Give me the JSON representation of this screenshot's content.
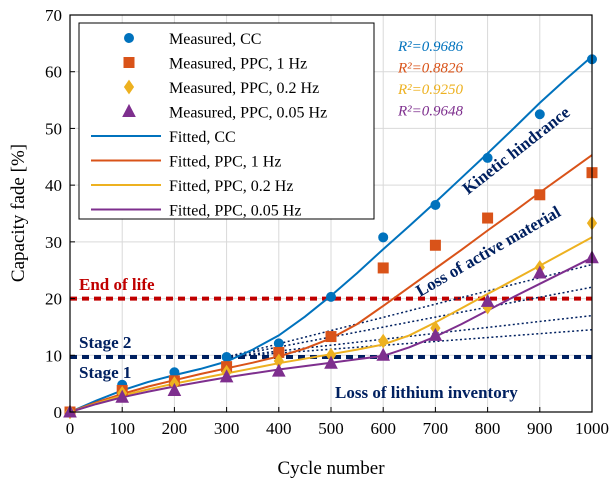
{
  "chart_data": {
    "type": "scatter",
    "xlabel": "Cycle number",
    "ylabel": "Capacity fade [%]",
    "xlim": [
      0,
      1000
    ],
    "ylim": [
      0,
      70
    ],
    "xticks": [
      0,
      100,
      200,
      300,
      400,
      500,
      600,
      700,
      800,
      900,
      1000
    ],
    "yticks": [
      0,
      10,
      20,
      30,
      40,
      50,
      60,
      70
    ],
    "grid": true,
    "legend_position": "top-left",
    "measured": [
      {
        "name": "Measured, CC",
        "color": "#0072BD",
        "marker": "circle",
        "x": [
          0,
          100,
          200,
          300,
          400,
          500,
          600,
          700,
          800,
          900,
          1000
        ],
        "y": [
          0,
          4.8,
          7,
          9.7,
          12.1,
          20.3,
          30.8,
          36.5,
          44.8,
          52.5,
          62.2
        ]
      },
      {
        "name": "Measured, PPC, 1 Hz",
        "color": "#D95319",
        "marker": "square",
        "x": [
          0,
          100,
          200,
          300,
          400,
          500,
          600,
          700,
          800,
          900,
          1000
        ],
        "y": [
          0,
          3.8,
          5.5,
          8,
          10.5,
          13.3,
          25.4,
          29.4,
          34.2,
          38.3,
          42.2
        ]
      },
      {
        "name": "Measured, PPC, 0.2 Hz",
        "color": "#EDB120",
        "marker": "diamond",
        "x": [
          0,
          100,
          200,
          300,
          400,
          500,
          600,
          700,
          800,
          900,
          1000
        ],
        "y": [
          0,
          3.3,
          5,
          7,
          9,
          10,
          12.5,
          14.8,
          18.5,
          25.5,
          33.3
        ]
      },
      {
        "name": "Measured, PPC, 0.05 Hz",
        "color": "#7E2F8E",
        "marker": "triangle",
        "x": [
          0,
          100,
          200,
          300,
          400,
          500,
          600,
          700,
          800,
          900,
          1000
        ],
        "y": [
          0,
          2.6,
          3.8,
          6.2,
          7.2,
          8.6,
          10,
          13.5,
          19.5,
          24.5,
          27.2
        ]
      }
    ],
    "fitted": [
      {
        "name": "Fitted, CC",
        "color": "#0072BD",
        "x": [
          0,
          50,
          100,
          150,
          200,
          250,
          300,
          350,
          400,
          450,
          500,
          550,
          600,
          650,
          700,
          750,
          800,
          850,
          900,
          950,
          1000
        ],
        "y": [
          0,
          2,
          3.8,
          5.3,
          6.5,
          7.6,
          8.9,
          11,
          13.5,
          16.8,
          20.5,
          24.5,
          28.7,
          32.8,
          37,
          41.3,
          45.6,
          50,
          54.5,
          58.7,
          62.7
        ]
      },
      {
        "name": "Fitted, PPC, 1 Hz",
        "color": "#D95319",
        "x": [
          0,
          50,
          100,
          150,
          200,
          250,
          300,
          350,
          400,
          450,
          500,
          550,
          600,
          650,
          700,
          750,
          800,
          850,
          900,
          950,
          1000
        ],
        "y": [
          0,
          1.7,
          3.2,
          4.5,
          5.6,
          6.7,
          7.7,
          8.7,
          9.8,
          11.2,
          13,
          15.5,
          18.7,
          22,
          25.3,
          28.6,
          32,
          35.3,
          38.7,
          42,
          45.3
        ]
      },
      {
        "name": "Fitted, PPC, 0.2 Hz",
        "color": "#EDB120",
        "x": [
          0,
          50,
          100,
          150,
          200,
          250,
          300,
          350,
          400,
          450,
          500,
          550,
          600,
          650,
          700,
          750,
          800,
          850,
          900,
          950,
          1000
        ],
        "y": [
          0,
          1.5,
          2.9,
          4,
          5,
          5.9,
          6.8,
          7.7,
          8.6,
          9.4,
          10.2,
          11,
          11.9,
          13.5,
          15.8,
          18.3,
          20.8,
          23.3,
          25.8,
          28.3,
          30.8
        ]
      },
      {
        "name": "Fitted, PPC, 0.05 Hz",
        "color": "#7E2F8E",
        "x": [
          0,
          50,
          100,
          150,
          200,
          250,
          300,
          350,
          400,
          450,
          500,
          550,
          600,
          650,
          700,
          750,
          800,
          850,
          900,
          950,
          1000
        ],
        "y": [
          0,
          1.4,
          2.6,
          3.6,
          4.5,
          5.3,
          6.1,
          6.8,
          7.5,
          8.1,
          8.7,
          9.3,
          9.9,
          11.4,
          13.3,
          15.5,
          17.9,
          20.3,
          22.6,
          24.9,
          27.2
        ]
      }
    ],
    "r_squared": [
      {
        "label": "R²=0.9686",
        "color": "#0072BD"
      },
      {
        "label": "R²=0.8826",
        "color": "#D95319"
      },
      {
        "label": "R²=0.9250",
        "color": "#EDB120"
      },
      {
        "label": "R²=0.9648",
        "color": "#7E2F8E"
      }
    ],
    "reference_lines": [
      {
        "name": "end-of-life-line",
        "y": 20,
        "color": "#C00000"
      },
      {
        "name": "stage-line",
        "y": 9.7,
        "color": "#002060"
      }
    ],
    "trend_lines": [
      {
        "x": [
          300,
          1000
        ],
        "y": [
          9.7,
          26
        ]
      },
      {
        "x": [
          300,
          1000
        ],
        "y": [
          9.7,
          22
        ]
      },
      {
        "x": [
          300,
          1000
        ],
        "y": [
          9.7,
          17
        ]
      },
      {
        "x": [
          300,
          1000
        ],
        "y": [
          9.7,
          14.5
        ]
      }
    ],
    "annotations": {
      "end_of_life": "End of life",
      "stage_2": "Stage 2",
      "stage_1": "Stage 1",
      "kinetic": "Kinetic hindrance",
      "active_material": "Loss of active material",
      "lithium_inventory": "Loss of lithium inventory"
    },
    "colors": {
      "end_of_life": "#C00000",
      "dark_navy": "#002060"
    }
  }
}
